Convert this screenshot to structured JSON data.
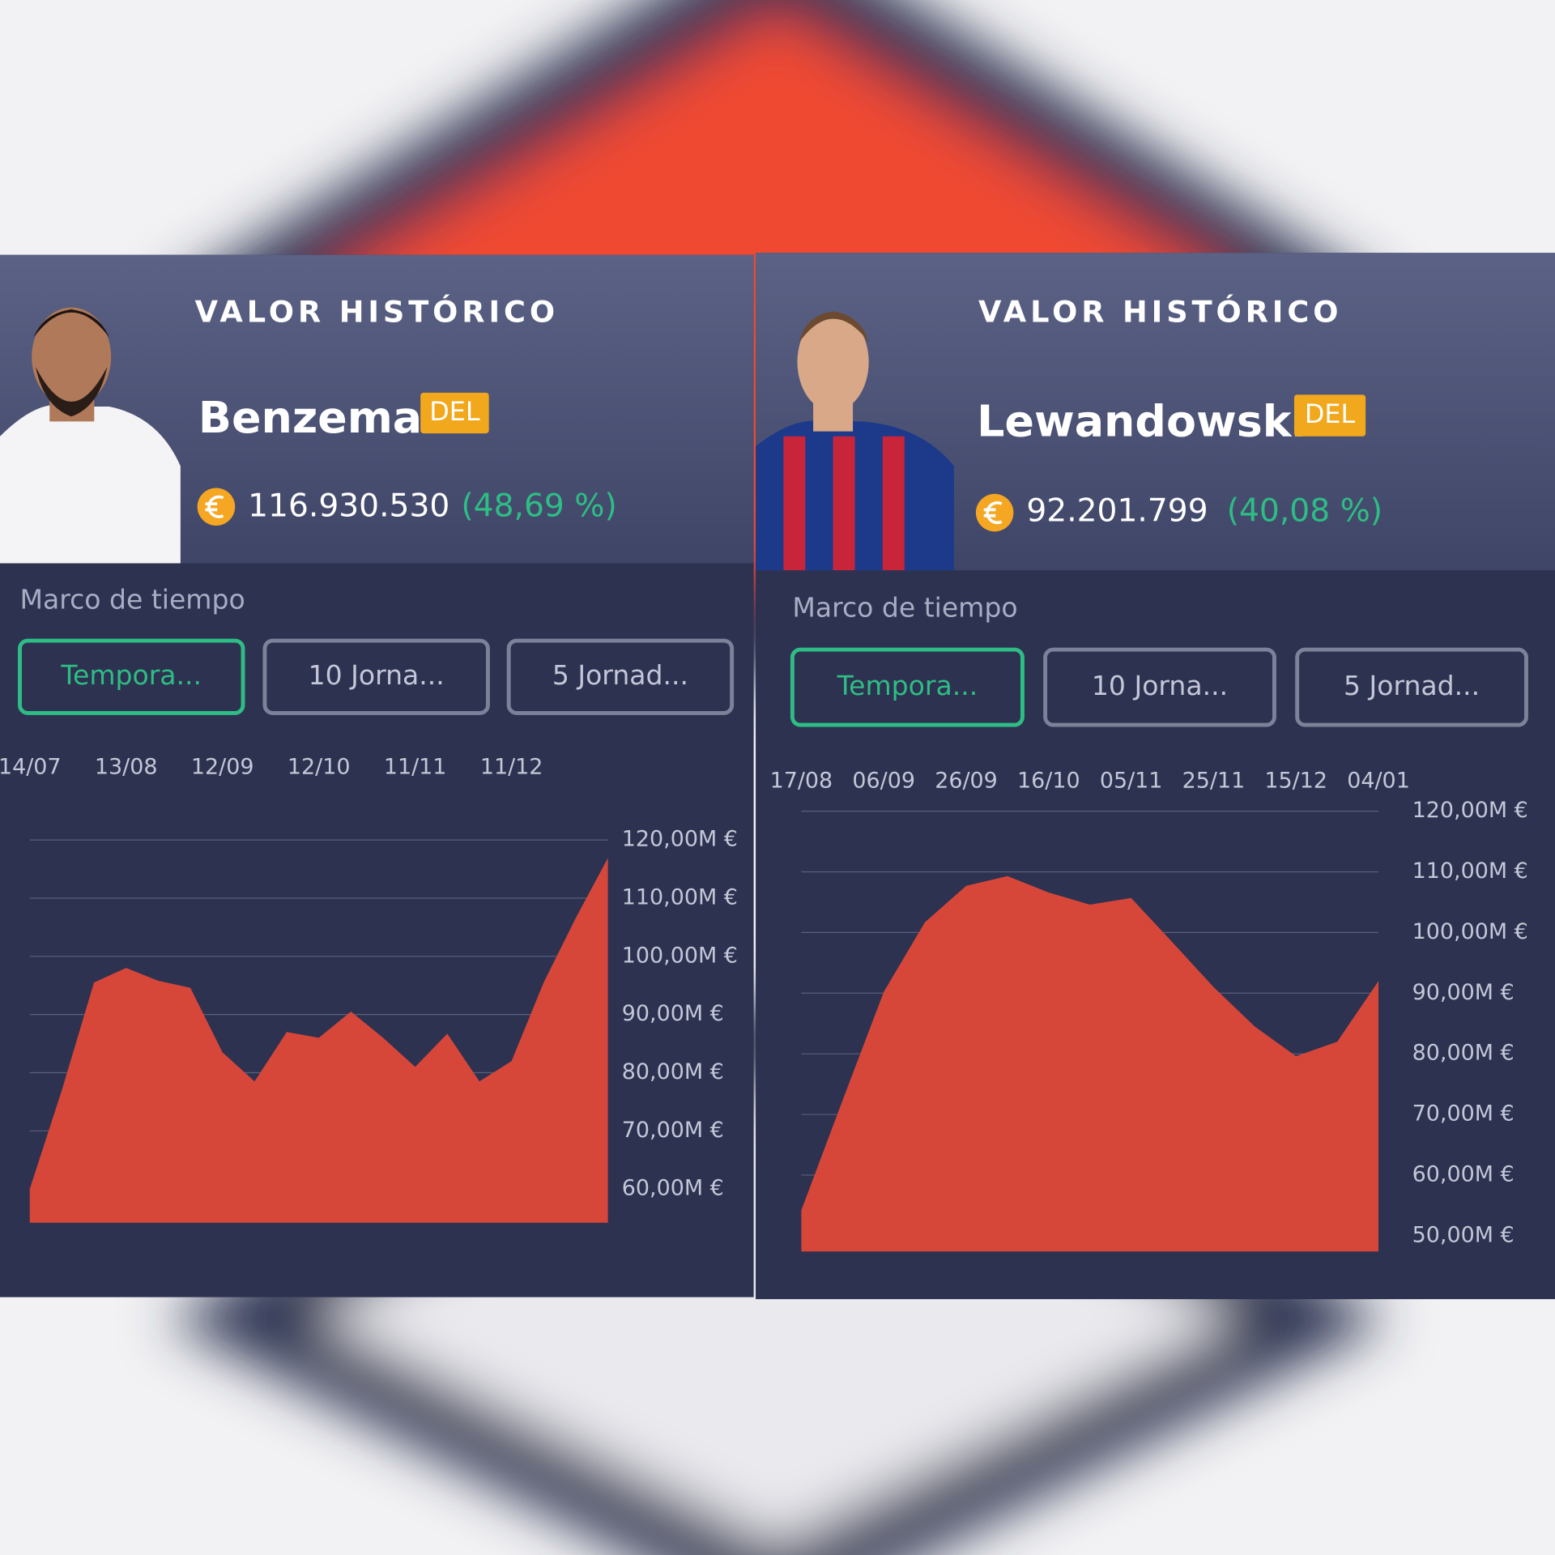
{
  "panels": [
    {
      "title": "VALOR HISTÓRICO",
      "name": "Benzema",
      "position": "DEL",
      "value": "116.930.530",
      "change": "(48,69 %)",
      "timeframe_label": "Marco de tiempo",
      "buttons": [
        "Tempora...",
        "10 Jorna...",
        "5 Jornad..."
      ]
    },
    {
      "title": "VALOR HISTÓRICO",
      "name": "Lewandowski",
      "position": "DEL",
      "value": "92.201.799",
      "change": "(40,08 %)",
      "timeframe_label": "Marco de tiempo",
      "buttons": [
        "Tempora...",
        "10 Jorna...",
        "5 Jornad..."
      ]
    }
  ],
  "chart_data": [
    {
      "type": "area",
      "color": "#d6473a",
      "grid": true,
      "categories": [
        "14/07",
        null,
        null,
        "13/08",
        null,
        null,
        "12/09",
        null,
        null,
        "12/10",
        null,
        null,
        "11/11",
        null,
        null,
        "11/12",
        null,
        null,
        null
      ],
      "values": [
        60,
        77,
        95.5,
        98,
        95.8,
        94.6,
        83.5,
        78.5,
        87,
        86,
        90.5,
        86,
        81,
        86.7,
        78.5,
        82,
        95.5,
        106.6,
        116.9
      ],
      "ylim": [
        54.2,
        120
      ],
      "yticks": [
        {
          "value": 120,
          "label": "120,00M €"
        },
        {
          "value": 110,
          "label": "110,00M €"
        },
        {
          "value": 100,
          "label": "100,00M €"
        },
        {
          "value": 90,
          "label": "90,00M €"
        },
        {
          "value": 80,
          "label": "80,00M €"
        },
        {
          "value": 70,
          "label": "70,00M €"
        },
        {
          "value": 60,
          "label": "60,00M €"
        }
      ]
    },
    {
      "type": "area",
      "color": "#d6473a",
      "grid": true,
      "categories": [
        "17/08",
        null,
        "06/09",
        null,
        "26/09",
        null,
        "16/10",
        null,
        "05/11",
        null,
        "25/11",
        null,
        "15/12",
        null,
        "04/01"
      ],
      "values": [
        54.2,
        72.3,
        90.2,
        101.7,
        107.7,
        109.3,
        106.6,
        104.6,
        105.7,
        98.4,
        91,
        84.5,
        79.6,
        82,
        92
      ],
      "ylim": [
        47.4,
        120
      ],
      "yticks": [
        {
          "value": 120,
          "label": "120,00M €"
        },
        {
          "value": 110,
          "label": "110,00M €"
        },
        {
          "value": 100,
          "label": "100,00M €"
        },
        {
          "value": 90,
          "label": "90,00M €"
        },
        {
          "value": 80,
          "label": "80,00M €"
        },
        {
          "value": 70,
          "label": "70,00M €"
        },
        {
          "value": 60,
          "label": "60,00M €"
        },
        {
          "value": 50,
          "label": "50,00M €"
        }
      ]
    }
  ]
}
